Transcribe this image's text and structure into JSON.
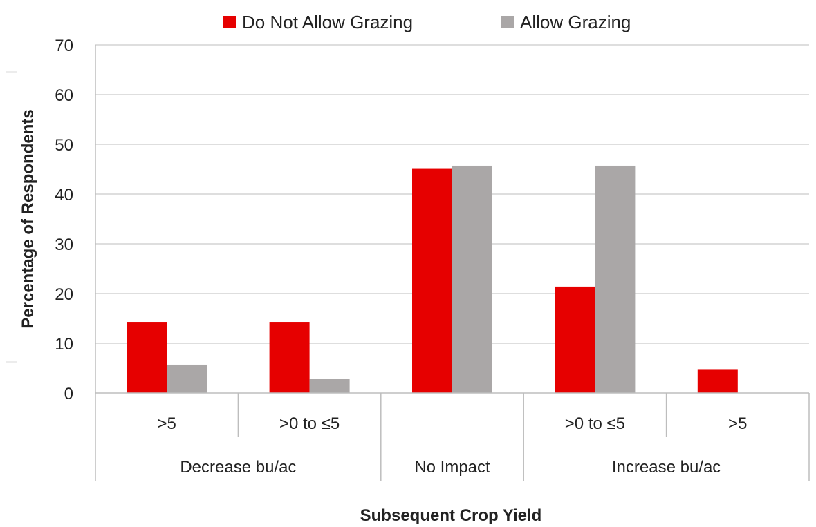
{
  "chart_data": {
    "type": "bar",
    "categories": [
      ">5",
      ">0 to ≤5",
      "No Impact",
      ">0 to ≤5",
      ">5"
    ],
    "category_groups": [
      {
        "label": "Decrease bu/ac",
        "categories": [
          ">5",
          ">0 to ≤5"
        ]
      },
      {
        "label": "No Impact",
        "categories": [
          "No Impact"
        ]
      },
      {
        "label": "Increase bu/ac",
        "categories": [
          ">0 to ≤5",
          ">5"
        ]
      }
    ],
    "series": [
      {
        "name": "Do Not Allow Grazing",
        "color": "#e60000",
        "values": [
          14.3,
          14.3,
          45.2,
          21.4,
          4.8
        ]
      },
      {
        "name": "Allow Grazing",
        "color": "#aaa7a7",
        "values": [
          5.7,
          2.9,
          45.7,
          45.7,
          0
        ]
      }
    ],
    "xlabel": "Subsequent Crop Yield",
    "ylabel": "Percentage of Respondents",
    "ylim": [
      0,
      70
    ],
    "yticks": [
      0,
      10,
      20,
      30,
      40,
      50,
      60,
      70
    ],
    "grid": true,
    "legend_position": "top"
  }
}
